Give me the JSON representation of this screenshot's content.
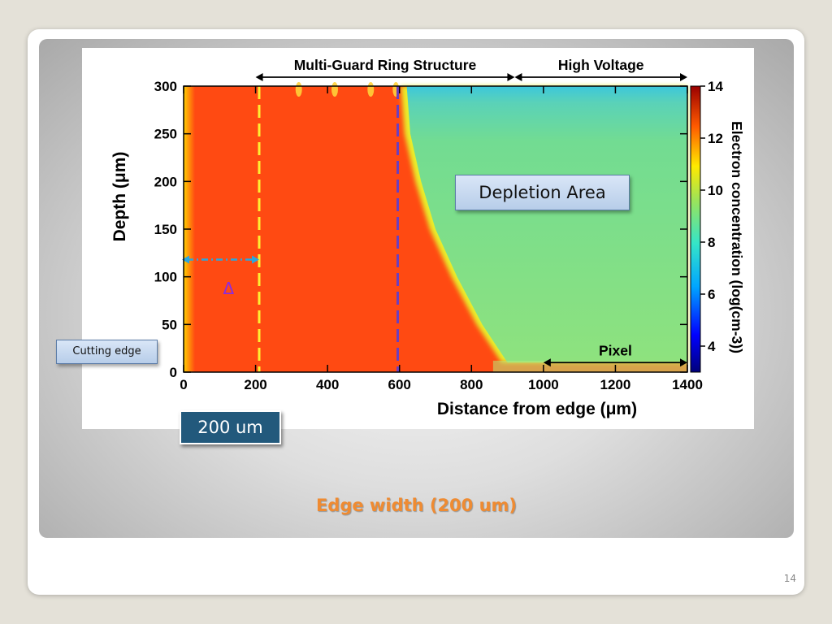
{
  "slide": {
    "caption": "Edge width (200 um)",
    "page_number": "14"
  },
  "callouts": {
    "depletion_area": "Depletion Area",
    "cutting_edge": "Cutting edge",
    "width_label": "200 um",
    "delta_symbol": "Δ"
  },
  "chart_data": {
    "type": "heatmap",
    "xlabel": "Distance from edge (μm)",
    "ylabel": "Depth (μm)",
    "colorbar_label": "Electron concentration (log(cm-3))",
    "xlim": [
      0,
      1400
    ],
    "ylim": [
      0,
      300
    ],
    "clim": [
      3,
      14
    ],
    "x_ticks": [
      0,
      200,
      400,
      600,
      800,
      1000,
      1200,
      1400
    ],
    "y_ticks": [
      0,
      50,
      100,
      150,
      200,
      250,
      300
    ],
    "colorbar_ticks": [
      4,
      6,
      8,
      10,
      12,
      14
    ],
    "regions": [
      {
        "label": "Multi-Guard Ring Structure",
        "x_start": 200,
        "x_end": 920
      },
      {
        "label": "High Voltage",
        "x_start": 920,
        "x_end": 1400
      },
      {
        "label": "Pixel",
        "x_start": 1000,
        "x_end": 1400
      }
    ],
    "markers": {
      "yellow_dashed_x": 210,
      "purple_dashed_x": 595,
      "delta_arrow_y": 118,
      "delta_arrow_x": [
        0,
        210
      ]
    },
    "depletion_boundary": [
      {
        "depth": 300,
        "x": 620
      },
      {
        "depth": 250,
        "x": 630
      },
      {
        "depth": 200,
        "x": 660
      },
      {
        "depth": 150,
        "x": 700
      },
      {
        "depth": 100,
        "x": 760
      },
      {
        "depth": 50,
        "x": 830
      },
      {
        "depth": 10,
        "x": 900
      }
    ],
    "guard_ring_dips_x": [
      320,
      420,
      520,
      590
    ],
    "colors": {
      "undepleted": "#ff4a12",
      "depleted": "#8ae07a",
      "surface": "#35c4dc",
      "yellow_line": "#ffee33",
      "purple_line": "#6b3fbf",
      "delta_arrow": "#29a7df"
    }
  }
}
